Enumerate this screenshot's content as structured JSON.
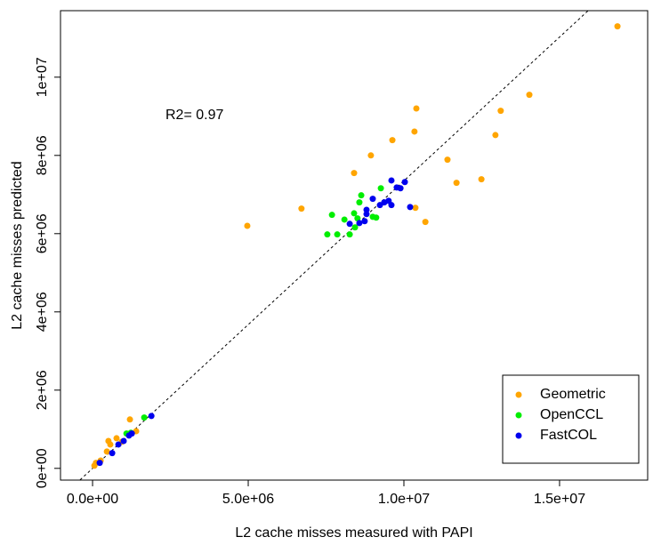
{
  "chart_data": {
    "type": "scatter",
    "xlabel": "L2 cache misses measured with PAPI",
    "ylabel": "L2 cache misses predicted",
    "annotation": "R2= 0.97",
    "xlim": [
      -1030000,
      17830000
    ],
    "ylim": [
      -300000,
      11700000
    ],
    "xticks": [
      {
        "value": 0,
        "label": "0.0e+00"
      },
      {
        "value": 5000000,
        "label": "5.0e+06"
      },
      {
        "value": 10000000,
        "label": "1.0e+07"
      },
      {
        "value": 15000000,
        "label": "1.5e+07"
      }
    ],
    "yticks": [
      {
        "value": 0,
        "label": "0e+00"
      },
      {
        "value": 2000000,
        "label": "2e+06"
      },
      {
        "value": 4000000,
        "label": "4e+06"
      },
      {
        "value": 6000000,
        "label": "6e+06"
      },
      {
        "value": 8000000,
        "label": "8e+06"
      },
      {
        "value": 10000000,
        "label": "1e+07"
      }
    ],
    "reference_line": {
      "slope": 0.735,
      "intercept": 0
    },
    "legend": "bottom-right",
    "series": [
      {
        "name": "Geometric",
        "color": "#ffa500",
        "x": [
          16860000,
          14030000,
          13110000,
          12940000,
          12490000,
          11400000,
          11690000,
          10400000,
          10340000,
          9630000,
          8940000,
          8400000,
          6710000,
          4970000,
          10370000,
          10690000,
          1200000,
          510000,
          570000,
          770000,
          940000,
          460000,
          1400000,
          110000,
          60000,
          260000
        ],
        "values": [
          11300000,
          9550000,
          9140000,
          8520000,
          7390000,
          7890000,
          7300000,
          9200000,
          8610000,
          8390000,
          8000000,
          7550000,
          6640000,
          6200000,
          6660000,
          6300000,
          1250000,
          700000,
          610000,
          770000,
          680000,
          430000,
          950000,
          140000,
          70000,
          200000
        ]
      },
      {
        "name": "OpenCCL",
        "color": "#00ee00",
        "x": [
          7690000,
          7540000,
          7860000,
          8090000,
          8260000,
          8400000,
          8510000,
          8570000,
          8630000,
          9000000,
          9110000,
          9260000,
          8430000,
          1660000,
          1090000,
          1230000
        ],
        "values": [
          6480000,
          5980000,
          5980000,
          6360000,
          5980000,
          6520000,
          6390000,
          6800000,
          6980000,
          6430000,
          6410000,
          7160000,
          6160000,
          1300000,
          890000,
          910000
        ]
      },
      {
        "name": "FastCOL",
        "color": "#0000ee",
        "x": [
          8260000,
          8570000,
          8740000,
          8800000,
          8800000,
          9000000,
          9230000,
          9370000,
          9600000,
          9770000,
          9890000,
          10030000,
          10200000,
          9510000,
          9600000,
          1890000,
          1260000,
          1000000,
          830000,
          630000,
          230000,
          1170000
        ],
        "values": [
          6250000,
          6270000,
          6320000,
          6610000,
          6500000,
          6890000,
          6730000,
          6800000,
          7360000,
          7180000,
          7160000,
          7320000,
          6680000,
          6840000,
          6730000,
          1340000,
          890000,
          700000,
          610000,
          390000,
          140000,
          840000
        ]
      }
    ]
  }
}
